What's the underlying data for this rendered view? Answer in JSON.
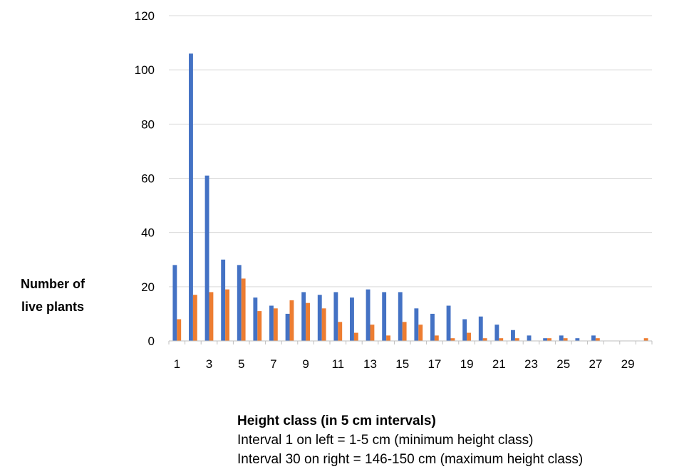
{
  "chart_data": {
    "type": "bar",
    "title": "",
    "ylabel_lines": [
      "Number of",
      "live plants"
    ],
    "xlabel": "Height class (in 5 cm intervals)",
    "notes": [
      "Interval 1 on left = 1-5 cm (minimum height class)",
      "Interval 30 on right = 146-150 cm (maximum height class)"
    ],
    "ylim": [
      0,
      120
    ],
    "yticks": [
      0,
      20,
      40,
      60,
      80,
      100,
      120
    ],
    "categories": [
      1,
      2,
      3,
      4,
      5,
      6,
      7,
      8,
      9,
      10,
      11,
      12,
      13,
      14,
      15,
      16,
      17,
      18,
      19,
      20,
      21,
      22,
      23,
      24,
      25,
      26,
      27,
      28,
      29,
      30
    ],
    "xtick_labels": [
      "1",
      "",
      "3",
      "",
      "5",
      "",
      "7",
      "",
      "9",
      "",
      "11",
      "",
      "13",
      "",
      "15",
      "",
      "17",
      "",
      "19",
      "",
      "21",
      "",
      "23",
      "",
      "25",
      "",
      "27",
      "",
      "29",
      ""
    ],
    "grid": "horizontal",
    "legend": "none",
    "series": [
      {
        "color": "#4472C4",
        "values": [
          28,
          106,
          61,
          30,
          28,
          16,
          13,
          10,
          18,
          17,
          18,
          16,
          19,
          18,
          18,
          12,
          10,
          13,
          8,
          9,
          6,
          4,
          2,
          1,
          2,
          1,
          2,
          0,
          0,
          0
        ]
      },
      {
        "color": "#ED7D31",
        "values": [
          8,
          17,
          18,
          19,
          23,
          11,
          12,
          15,
          14,
          12,
          7,
          3,
          6,
          2,
          7,
          6,
          2,
          1,
          3,
          1,
          1,
          1,
          0,
          1,
          1,
          0,
          1,
          0,
          0,
          1
        ]
      }
    ]
  }
}
